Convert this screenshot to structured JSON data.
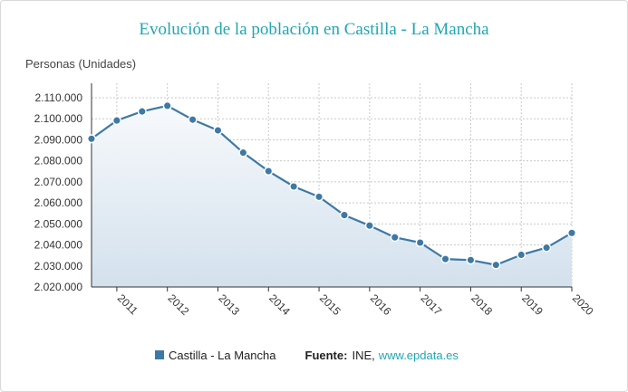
{
  "chart_data": {
    "type": "area",
    "title": "Evolución de la población en Castilla - La Mancha",
    "ylabel": "Personas (Unidades)",
    "xlabel": "",
    "ylim": [
      2020000,
      2110000
    ],
    "y_ticks": [
      "2.020.000",
      "2.030.000",
      "2.040.000",
      "2.050.000",
      "2.060.000",
      "2.070.000",
      "2.080.000",
      "2.090.000",
      "2.100.000",
      "2.110.000"
    ],
    "x_ticks": [
      "2011",
      "2012",
      "2013",
      "2014",
      "2015",
      "2016",
      "2017",
      "2018",
      "2019",
      "2020"
    ],
    "x": [
      "2010-07",
      "2011-01",
      "2011-07",
      "2012-01",
      "2012-07",
      "2013-01",
      "2013-07",
      "2014-01",
      "2014-07",
      "2015-01",
      "2015-07",
      "2016-01",
      "2016-07",
      "2017-01",
      "2017-07",
      "2018-01",
      "2018-07",
      "2019-01",
      "2019-07",
      "2020-01"
    ],
    "series": [
      {
        "name": "Castilla - La Mancha",
        "color": "#3d79a6",
        "values": [
          2090500,
          2099200,
          2103500,
          2106200,
          2099600,
          2094500,
          2083900,
          2075100,
          2067800,
          2062900,
          2054200,
          2049200,
          2043600,
          2041100,
          2033300,
          2032800,
          2030500,
          2035300,
          2038700,
          2045700
        ]
      }
    ],
    "grid": true,
    "legend": "bottom"
  },
  "source": {
    "label": "Fuente:",
    "value": "INE,",
    "link": "www.epdata.es"
  }
}
